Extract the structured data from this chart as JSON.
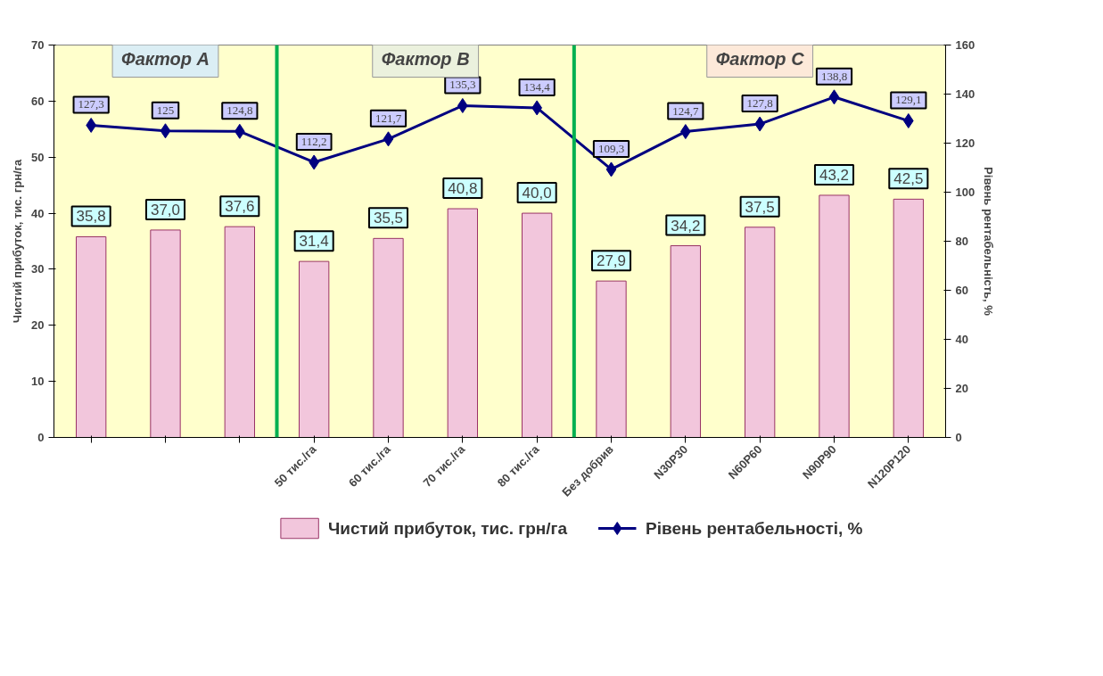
{
  "chart_data": {
    "type": "bar",
    "categories": [
      null,
      null,
      null,
      "50 тис./га",
      "60 тис./га",
      "70 тис./га",
      "80 тис./га",
      "Без добрив",
      "N30P30",
      "N60P60",
      "N90P90",
      "N120P120"
    ],
    "ylabel": "Чистий прибуток, тис. грн/га",
    "y2label": "Рівень рентабельність, %",
    "ylim": [
      0,
      70
    ],
    "yticks": [
      0,
      10,
      20,
      30,
      40,
      50,
      60,
      70
    ],
    "y2lim": [
      0,
      160
    ],
    "y2ticks": [
      0,
      20,
      40,
      60,
      80,
      100,
      120,
      140,
      160
    ],
    "series": [
      {
        "name": "Чистий прибуток, тис. грн/га",
        "color": "#993366",
        "values": [
          35.8,
          37.0,
          37.6,
          31.4,
          35.5,
          40.8,
          40.0,
          27.9,
          34.2,
          37.5,
          43.2,
          42.5
        ],
        "value_labels": [
          "35,8",
          "37,0",
          "37,6",
          "31,4",
          "35,5",
          "40,8",
          "40,0",
          "27,9",
          "34,2",
          "37,5",
          "43,2",
          "42,5"
        ]
      },
      {
        "name": "Рівень рентабельності, %",
        "type": "line",
        "axis": "y2",
        "color": "#000080",
        "marker": "diamond",
        "values": [
          127.3,
          125,
          124.8,
          112.2,
          121.7,
          135.3,
          134.4,
          109.3,
          124.7,
          127.8,
          138.8,
          129.1
        ],
        "value_labels": [
          "127,3",
          "125",
          "124,8",
          "112,2",
          "121,7",
          "135,3",
          "134,4",
          "109,3",
          "124,7",
          "127,8",
          "138,8",
          "129,1"
        ]
      }
    ],
    "annotations": [
      "Фактор А",
      "Фактор В",
      "Фактор С"
    ],
    "grid": false,
    "legend": "bottom"
  }
}
